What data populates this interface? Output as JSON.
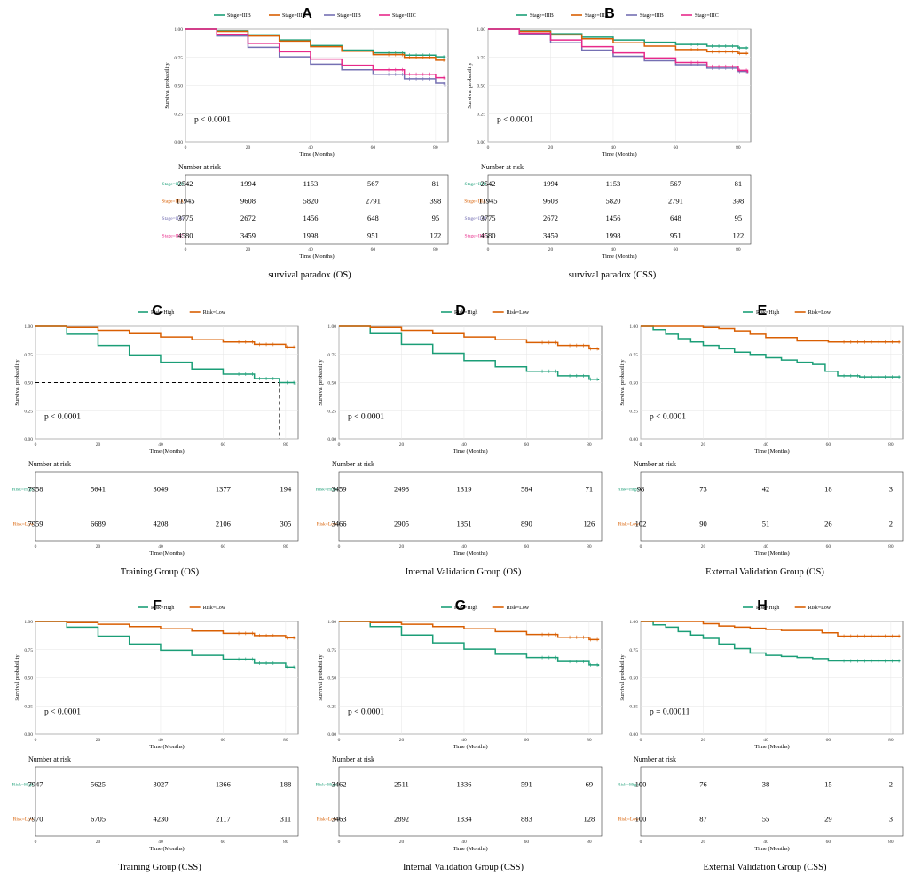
{
  "figure": {
    "x_axis_label": "Time (Months)",
    "y_axis_label": "Survival probability",
    "number_at_risk_label": "Number at risk"
  },
  "chart_data": [
    {
      "id": "panel-a",
      "letter": "A",
      "type": "line",
      "caption": "survival paradox (OS)",
      "p_value": "p < 0.0001",
      "xlabel": "Time (Months)",
      "ylabel": "Survival probability",
      "xlim": [
        0,
        84
      ],
      "ylim": [
        0,
        1
      ],
      "x_ticks": [
        0,
        20,
        40,
        60,
        80
      ],
      "y_ticks": [
        "0.00",
        "0.25",
        "0.50",
        "0.75",
        "1.00"
      ],
      "median_line": false,
      "series": [
        {
          "name": "Stage=IIIB",
          "color": "#1b9e77",
          "x": [
            0,
            10,
            20,
            30,
            40,
            50,
            60,
            70,
            80,
            83
          ],
          "y": [
            1,
            0.985,
            0.95,
            0.905,
            0.855,
            0.815,
            0.79,
            0.77,
            0.755,
            0.75
          ],
          "at_risk": [
            2542,
            1994,
            1153,
            567,
            81
          ]
        },
        {
          "name": "Stage=IIIA",
          "color": "#d95f02",
          "x": [
            0,
            10,
            20,
            30,
            40,
            50,
            60,
            70,
            80,
            83
          ],
          "y": [
            1,
            0.98,
            0.94,
            0.895,
            0.845,
            0.805,
            0.775,
            0.75,
            0.725,
            0.72
          ],
          "at_risk": [
            11945,
            9608,
            5820,
            2791,
            398
          ]
        },
        {
          "name": "Stage=IIIB",
          "color": "#7570b3",
          "x": [
            0,
            10,
            20,
            30,
            40,
            50,
            60,
            70,
            80,
            83
          ],
          "y": [
            1,
            0.94,
            0.84,
            0.755,
            0.69,
            0.64,
            0.6,
            0.56,
            0.52,
            0.49
          ],
          "at_risk": [
            3775,
            2672,
            1456,
            648,
            95
          ]
        },
        {
          "name": "Stage=IIIC",
          "color": "#e7298a",
          "x": [
            0,
            10,
            20,
            30,
            40,
            50,
            60,
            70,
            80,
            83
          ],
          "y": [
            1,
            0.955,
            0.875,
            0.8,
            0.735,
            0.68,
            0.64,
            0.6,
            0.57,
            0.555
          ],
          "at_risk": [
            4580,
            3459,
            1998,
            951,
            122
          ]
        }
      ]
    },
    {
      "id": "panel-b",
      "letter": "B",
      "type": "line",
      "caption": "survival paradox (CSS)",
      "p_value": "p < 0.0001",
      "xlabel": "Time (Months)",
      "ylabel": "Survival probability",
      "xlim": [
        0,
        84
      ],
      "ylim": [
        0,
        1
      ],
      "x_ticks": [
        0,
        20,
        40,
        60,
        80
      ],
      "y_ticks": [
        "0.00",
        "0.25",
        "0.50",
        "0.75",
        "1.00"
      ],
      "median_line": false,
      "series": [
        {
          "name": "Stage=IIIB",
          "color": "#1b9e77",
          "x": [
            0,
            10,
            20,
            30,
            40,
            50,
            60,
            70,
            80,
            83
          ],
          "y": [
            1,
            0.985,
            0.96,
            0.93,
            0.905,
            0.885,
            0.865,
            0.85,
            0.835,
            0.83
          ],
          "at_risk": [
            2542,
            1994,
            1153,
            567,
            81
          ]
        },
        {
          "name": "Stage=IIIA",
          "color": "#d95f02",
          "x": [
            0,
            10,
            20,
            30,
            40,
            50,
            60,
            70,
            80,
            83
          ],
          "y": [
            1,
            0.98,
            0.95,
            0.915,
            0.88,
            0.85,
            0.82,
            0.8,
            0.785,
            0.78
          ],
          "at_risk": [
            11945,
            9608,
            5820,
            2791,
            398
          ]
        },
        {
          "name": "Stage=IIIB",
          "color": "#7570b3",
          "x": [
            0,
            10,
            20,
            30,
            40,
            50,
            60,
            70,
            80,
            83
          ],
          "y": [
            1,
            0.955,
            0.88,
            0.815,
            0.76,
            0.72,
            0.685,
            0.655,
            0.625,
            0.61
          ],
          "at_risk": [
            3775,
            2672,
            1456,
            648,
            95
          ]
        },
        {
          "name": "Stage=IIIC",
          "color": "#e7298a",
          "x": [
            0,
            10,
            20,
            30,
            40,
            50,
            60,
            70,
            80,
            83
          ],
          "y": [
            1,
            0.965,
            0.905,
            0.845,
            0.79,
            0.745,
            0.705,
            0.67,
            0.635,
            0.615
          ],
          "at_risk": [
            4580,
            3459,
            1998,
            951,
            122
          ]
        }
      ]
    },
    {
      "id": "panel-c",
      "letter": "C",
      "type": "line",
      "caption": "Training Group (OS)",
      "p_value": "p < 0.0001",
      "xlabel": "Time (Months)",
      "ylabel": "Survival probability",
      "xlim": [
        0,
        84
      ],
      "ylim": [
        0,
        1
      ],
      "x_ticks": [
        0,
        20,
        40,
        60,
        80
      ],
      "y_ticks": [
        "0.00",
        "0.25",
        "0.50",
        "0.75",
        "1.00"
      ],
      "median_line": true,
      "median_time": 78,
      "series": [
        {
          "name": "Risk=High",
          "color": "#1b9e77",
          "x": [
            0,
            10,
            20,
            30,
            40,
            50,
            60,
            70,
            78,
            83
          ],
          "y": [
            1,
            0.93,
            0.83,
            0.745,
            0.68,
            0.62,
            0.575,
            0.535,
            0.5,
            0.48
          ],
          "at_risk": [
            7958,
            5641,
            3049,
            1377,
            194
          ]
        },
        {
          "name": "Risk=Low",
          "color": "#d95f02",
          "x": [
            0,
            10,
            20,
            30,
            40,
            50,
            60,
            70,
            80,
            83
          ],
          "y": [
            1,
            0.99,
            0.965,
            0.935,
            0.905,
            0.88,
            0.86,
            0.84,
            0.815,
            0.805
          ],
          "at_risk": [
            7959,
            6689,
            4208,
            2106,
            305
          ]
        }
      ]
    },
    {
      "id": "panel-d",
      "letter": "D",
      "type": "line",
      "caption": "Internal Validation Group (OS)",
      "p_value": "p < 0.0001",
      "xlabel": "Time (Months)",
      "ylabel": "Survival probability",
      "xlim": [
        0,
        84
      ],
      "ylim": [
        0,
        1
      ],
      "x_ticks": [
        0,
        20,
        40,
        60,
        80
      ],
      "y_ticks": [
        "0.00",
        "0.25",
        "0.50",
        "0.75",
        "1.00"
      ],
      "median_line": false,
      "series": [
        {
          "name": "Risk=High",
          "color": "#1b9e77",
          "x": [
            0,
            10,
            20,
            30,
            40,
            50,
            60,
            70,
            80,
            83
          ],
          "y": [
            1,
            0.935,
            0.84,
            0.76,
            0.695,
            0.64,
            0.6,
            0.56,
            0.53,
            0.52
          ],
          "at_risk": [
            3459,
            2498,
            1319,
            584,
            71
          ]
        },
        {
          "name": "Risk=Low",
          "color": "#d95f02",
          "x": [
            0,
            10,
            20,
            30,
            40,
            50,
            60,
            70,
            80,
            83
          ],
          "y": [
            1,
            0.99,
            0.965,
            0.935,
            0.905,
            0.88,
            0.855,
            0.83,
            0.8,
            0.79
          ],
          "at_risk": [
            3466,
            2905,
            1851,
            890,
            126
          ]
        }
      ]
    },
    {
      "id": "panel-e",
      "letter": "E",
      "type": "line",
      "caption": "External Validation Group (OS)",
      "p_value": "p < 0.0001",
      "xlabel": "Time (Months)",
      "ylabel": "Survival probability",
      "xlim": [
        0,
        84
      ],
      "ylim": [
        0,
        1
      ],
      "x_ticks": [
        0,
        20,
        40,
        60,
        80
      ],
      "y_ticks": [
        "0.00",
        "0.25",
        "0.50",
        "0.75",
        "1.00"
      ],
      "median_line": false,
      "series": [
        {
          "name": "Risk=High",
          "color": "#1b9e77",
          "x": [
            0,
            4,
            8,
            12,
            16,
            20,
            25,
            30,
            35,
            40,
            45,
            50,
            55,
            59,
            63,
            70,
            83
          ],
          "y": [
            1,
            0.97,
            0.93,
            0.89,
            0.86,
            0.83,
            0.8,
            0.77,
            0.75,
            0.72,
            0.7,
            0.68,
            0.66,
            0.6,
            0.56,
            0.55,
            0.55
          ],
          "at_risk": [
            98,
            73,
            42,
            18,
            3
          ]
        },
        {
          "name": "Risk=Low",
          "color": "#d95f02",
          "x": [
            0,
            15,
            20,
            25,
            30,
            35,
            40,
            45,
            50,
            60,
            83
          ],
          "y": [
            1,
            1,
            0.99,
            0.98,
            0.96,
            0.93,
            0.9,
            0.9,
            0.87,
            0.86,
            0.86
          ],
          "at_risk": [
            102,
            90,
            51,
            26,
            2
          ]
        }
      ]
    },
    {
      "id": "panel-f",
      "letter": "F",
      "type": "line",
      "caption": "Training Group (CSS)",
      "p_value": "p < 0.0001",
      "xlabel": "Time (Months)",
      "ylabel": "Survival probability",
      "xlim": [
        0,
        84
      ],
      "ylim": [
        0,
        1
      ],
      "x_ticks": [
        0,
        20,
        40,
        60,
        80
      ],
      "y_ticks": [
        "0.00",
        "0.25",
        "0.50",
        "0.75",
        "1.00"
      ],
      "median_line": false,
      "series": [
        {
          "name": "Risk=High",
          "color": "#1b9e77",
          "x": [
            0,
            10,
            20,
            30,
            40,
            50,
            60,
            70,
            80,
            83
          ],
          "y": [
            1,
            0.95,
            0.87,
            0.8,
            0.745,
            0.7,
            0.665,
            0.63,
            0.595,
            0.575
          ],
          "at_risk": [
            7947,
            5625,
            3027,
            1366,
            188
          ]
        },
        {
          "name": "Risk=Low",
          "color": "#d95f02",
          "x": [
            0,
            10,
            20,
            30,
            40,
            50,
            60,
            70,
            80,
            83
          ],
          "y": [
            1,
            0.99,
            0.975,
            0.955,
            0.935,
            0.915,
            0.895,
            0.875,
            0.855,
            0.845
          ],
          "at_risk": [
            7970,
            6705,
            4230,
            2117,
            311
          ]
        }
      ]
    },
    {
      "id": "panel-g",
      "letter": "G",
      "type": "line",
      "caption": "Internal Validation Group (CSS)",
      "p_value": "p < 0.0001",
      "xlabel": "Time (Months)",
      "ylabel": "Survival probability",
      "xlim": [
        0,
        84
      ],
      "ylim": [
        0,
        1
      ],
      "x_ticks": [
        0,
        20,
        40,
        60,
        80
      ],
      "y_ticks": [
        "0.00",
        "0.25",
        "0.50",
        "0.75",
        "1.00"
      ],
      "median_line": false,
      "series": [
        {
          "name": "Risk=High",
          "color": "#1b9e77",
          "x": [
            0,
            10,
            20,
            30,
            40,
            50,
            60,
            70,
            80,
            83
          ],
          "y": [
            1,
            0.955,
            0.88,
            0.81,
            0.755,
            0.71,
            0.68,
            0.645,
            0.615,
            0.605
          ],
          "at_risk": [
            3462,
            2511,
            1336,
            591,
            69
          ]
        },
        {
          "name": "Risk=Low",
          "color": "#d95f02",
          "x": [
            0,
            10,
            20,
            30,
            40,
            50,
            60,
            70,
            80,
            83
          ],
          "y": [
            1,
            0.99,
            0.975,
            0.955,
            0.935,
            0.91,
            0.885,
            0.86,
            0.84,
            0.835
          ],
          "at_risk": [
            3463,
            2892,
            1834,
            883,
            128
          ]
        }
      ]
    },
    {
      "id": "panel-h",
      "letter": "H",
      "type": "line",
      "caption": "External Validation Group (CSS)",
      "p_value": "p = 0.00011",
      "xlabel": "Time (Months)",
      "ylabel": "Survival probability",
      "xlim": [
        0,
        84
      ],
      "ylim": [
        0,
        1
      ],
      "x_ticks": [
        0,
        20,
        40,
        60,
        80
      ],
      "y_ticks": [
        "0.00",
        "0.25",
        "0.50",
        "0.75",
        "1.00"
      ],
      "median_line": false,
      "series": [
        {
          "name": "Risk=High",
          "color": "#1b9e77",
          "x": [
            0,
            4,
            8,
            12,
            16,
            20,
            25,
            30,
            35,
            40,
            45,
            50,
            55,
            60,
            83
          ],
          "y": [
            1,
            0.97,
            0.95,
            0.91,
            0.88,
            0.85,
            0.8,
            0.76,
            0.72,
            0.7,
            0.69,
            0.68,
            0.67,
            0.65,
            0.65
          ],
          "at_risk": [
            100,
            76,
            38,
            15,
            2
          ]
        },
        {
          "name": "Risk=Low",
          "color": "#d95f02",
          "x": [
            0,
            15,
            20,
            25,
            30,
            35,
            40,
            45,
            50,
            58,
            63,
            83
          ],
          "y": [
            1,
            1,
            0.98,
            0.96,
            0.95,
            0.94,
            0.93,
            0.92,
            0.92,
            0.9,
            0.87,
            0.87
          ],
          "at_risk": [
            100,
            87,
            55,
            29,
            3
          ]
        }
      ]
    }
  ]
}
